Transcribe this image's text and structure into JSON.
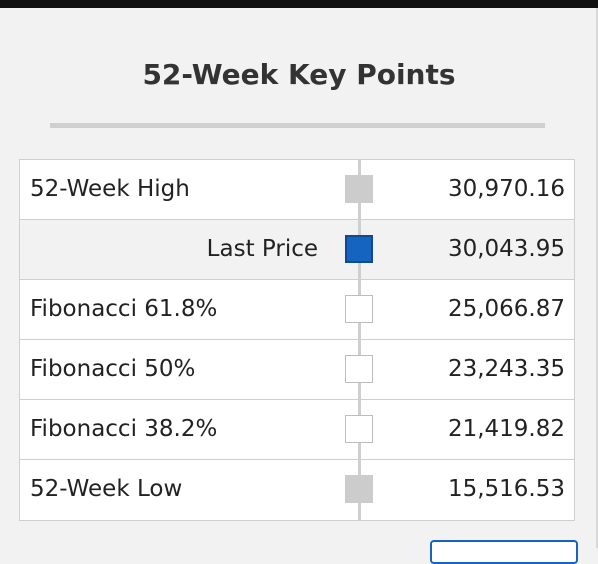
{
  "header": {
    "title": "52-Week Key Points"
  },
  "table": {
    "rows": [
      [
        "52-Week High",
        "30,970.16"
      ],
      [
        "Last Price",
        "30,043.95"
      ],
      [
        "Fibonacci 61.8%",
        "25,066.87"
      ],
      [
        "Fibonacci 50%",
        "23,243.35"
      ],
      [
        "Fibonacci 38.2%",
        "21,419.82"
      ],
      [
        "52-Week Low",
        "15,516.53"
      ]
    ]
  }
}
